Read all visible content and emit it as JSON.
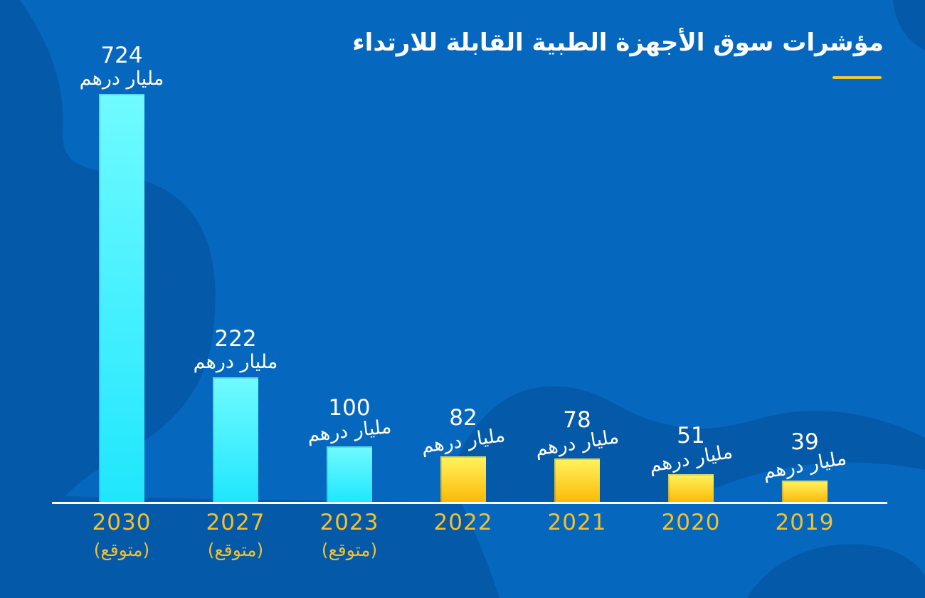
{
  "title": "مؤشرات سوق الأجهزة الطبية القابلة للارتداء",
  "unit_label": "مليار درهم",
  "expected_label": "(متوقع)",
  "colors": {
    "background": "#0667BF",
    "blob_dark": "#0459A8",
    "cyan_bar_top": "#70FBFF",
    "cyan_bar_bottom": "#1FE6FD",
    "gold_bar_top": "#FFF45F",
    "gold_bar_bottom": "#FCB905",
    "axis": "#FFFFFF",
    "value_text": "#FFFFFF",
    "year_text": "#EFC231",
    "title_underline": "#E9C73F"
  },
  "chart_data": {
    "type": "bar",
    "title": "مؤشرات سوق الأجهزة الطبية القابلة للارتداء",
    "unit": "مليار درهم",
    "categories": [
      "2030 (متوقع)",
      "2027 (متوقع)",
      "2023 (متوقع)",
      "2022",
      "2021",
      "2020",
      "2019"
    ],
    "values": [
      724,
      222,
      100,
      82,
      78,
      51,
      39
    ],
    "ylim": [
      0,
      724
    ],
    "grid": false,
    "legend": false,
    "bars": [
      {
        "year": "2030",
        "expected": true,
        "value": 724,
        "value_label": "724",
        "unit": "مليار درهم",
        "color": "cyan",
        "tilt": 0
      },
      {
        "year": "2027",
        "expected": true,
        "value": 222,
        "value_label": "222",
        "unit": "مليار درهم",
        "color": "cyan",
        "tilt": 0
      },
      {
        "year": "2023",
        "expected": true,
        "value": 100,
        "value_label": "100",
        "unit": "مليار درهم",
        "color": "cyan",
        "tilt": -6
      },
      {
        "year": "2022",
        "expected": false,
        "value": 82,
        "value_label": "82",
        "unit": "مليار درهم",
        "color": "gold",
        "tilt": -8
      },
      {
        "year": "2021",
        "expected": false,
        "value": 78,
        "value_label": "78",
        "unit": "مليار درهم",
        "color": "gold",
        "tilt": -9
      },
      {
        "year": "2020",
        "expected": false,
        "value": 51,
        "value_label": "51",
        "unit": "مليار درهم",
        "color": "gold",
        "tilt": -10
      },
      {
        "year": "2019",
        "expected": false,
        "value": 39,
        "value_label": "39",
        "unit": "مليار درهم",
        "color": "gold",
        "tilt": -10
      }
    ]
  }
}
